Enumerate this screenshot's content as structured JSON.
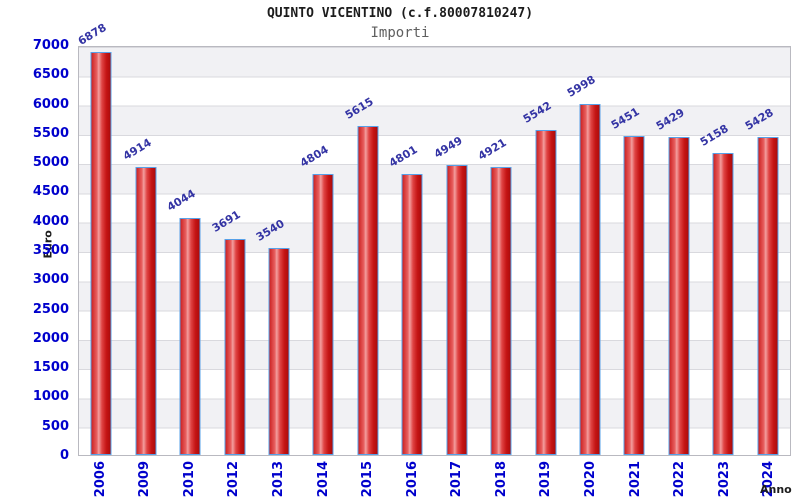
{
  "header": {
    "title": "QUINTO VICENTINO (c.f.80007810247)",
    "subtitle": "Importi"
  },
  "chart_data": {
    "type": "bar",
    "title": "QUINTO VICENTINO (c.f.80007810247)",
    "subtitle": "Importi",
    "xlabel": "Anno",
    "ylabel": "Euro",
    "categories": [
      "2006",
      "2009",
      "2010",
      "2012",
      "2013",
      "2014",
      "2015",
      "2016",
      "2017",
      "2018",
      "2019",
      "2020",
      "2021",
      "2022",
      "2023",
      "2024"
    ],
    "values": [
      6878,
      4914,
      4044,
      3691,
      3540,
      4804,
      5615,
      4801,
      4949,
      4921,
      5542,
      5998,
      5451,
      5429,
      5158,
      5428
    ],
    "ylim": [
      0,
      7000
    ],
    "ytick_step": 500,
    "grid": true,
    "legend": "none",
    "bar_fill_color": "#e03030",
    "bar_border_color": "#56a0e8",
    "value_label_color": "#3434a4",
    "tick_label_color": "#0000cc",
    "band_color": "#f1f1f4"
  }
}
